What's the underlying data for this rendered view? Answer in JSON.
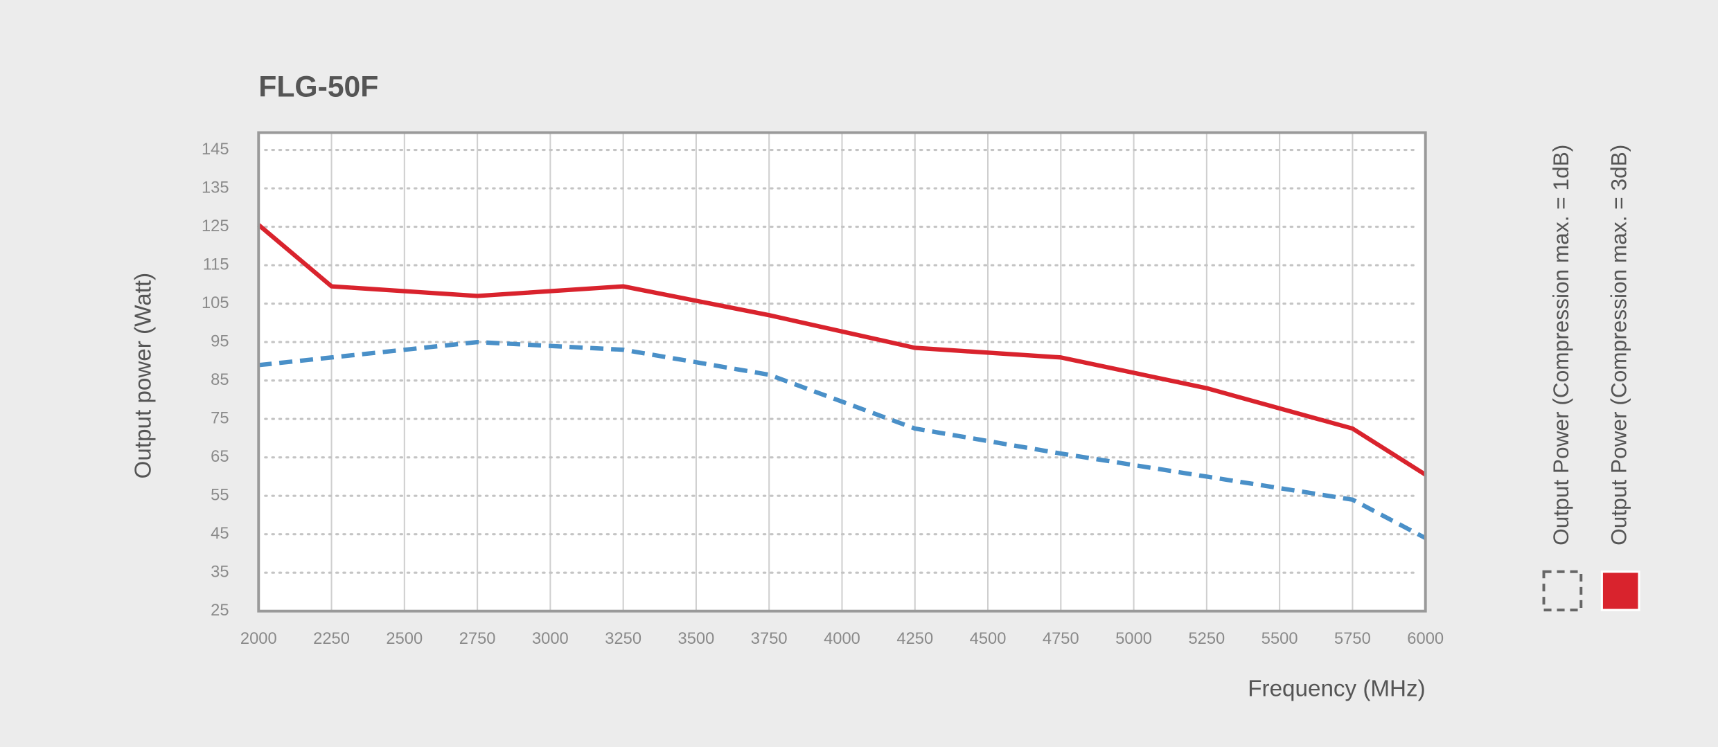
{
  "chart_data": {
    "type": "line",
    "title": "FLG-50F",
    "x_label": "Frequency (MHz)",
    "y_label": "Output power (Watt)",
    "xlim": [
      2000,
      6000
    ],
    "xticks": [
      2000,
      2250,
      2500,
      2750,
      3000,
      3250,
      3500,
      3750,
      4000,
      4250,
      4500,
      4750,
      5000,
      5250,
      5500,
      5750,
      6000
    ],
    "ylim": [
      25,
      149.5
    ],
    "yticks": [
      25,
      35,
      45,
      55,
      65,
      75,
      85,
      95,
      105,
      115,
      125,
      135,
      145
    ],
    "grid": true,
    "legend_position": "right",
    "x": [
      2000,
      2250,
      2750,
      3250,
      3750,
      4250,
      4750,
      5250,
      5750,
      6000
    ],
    "series": [
      {
        "name": "Output Power (Compression max. = 1dB)",
        "color": "#4a90c8",
        "dashed": true,
        "values": [
          89,
          91,
          95,
          93,
          86.5,
          72.5,
          66,
          60,
          54,
          44
        ]
      },
      {
        "name": "Output Power (Compression max. = 3dB)",
        "color": "#d9232d",
        "dashed": false,
        "values": [
          125.5,
          109.5,
          107,
          109.5,
          102,
          93.5,
          91,
          83,
          72.5,
          60.5
        ]
      }
    ]
  }
}
